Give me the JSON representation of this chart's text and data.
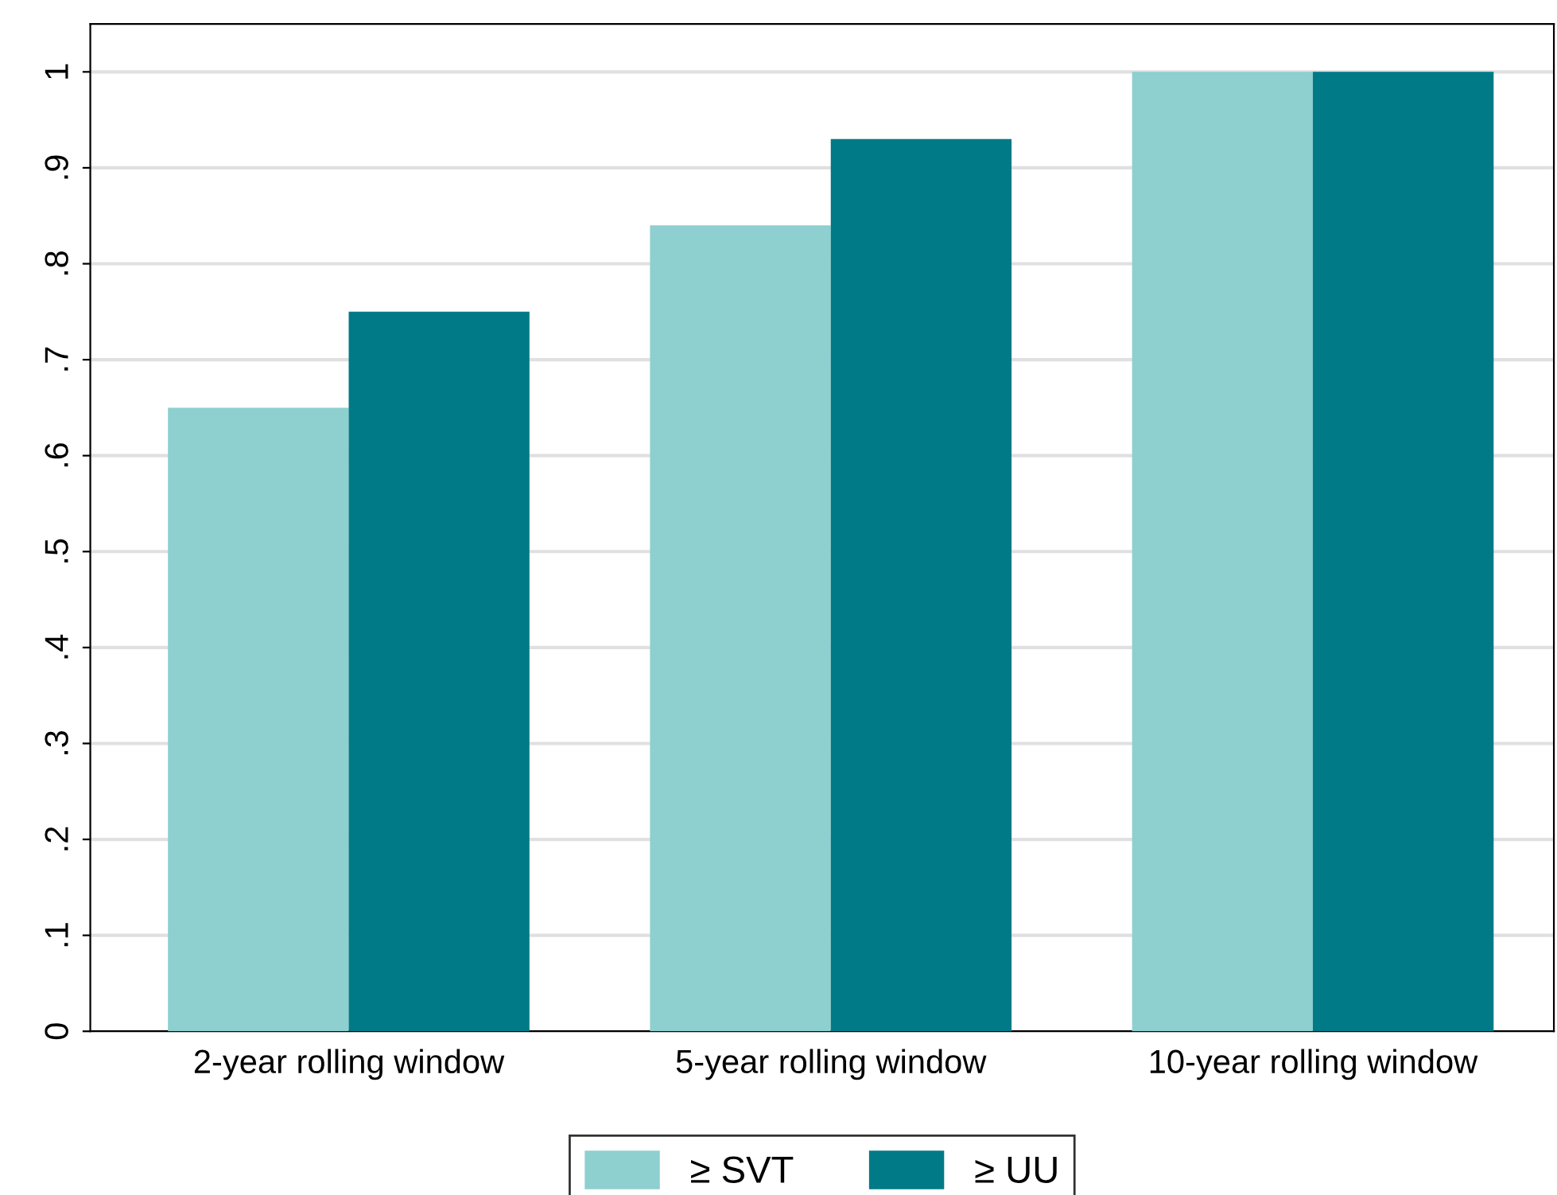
{
  "chart_data": {
    "type": "bar",
    "categories": [
      "2-year rolling window",
      "5-year rolling window",
      "10-year rolling window"
    ],
    "series": [
      {
        "name": "≥ SVT",
        "color": "#8ecfd0",
        "values": [
          0.65,
          0.84,
          1.0
        ]
      },
      {
        "name": "≥ UU",
        "color": "#007a87",
        "values": [
          0.75,
          0.93,
          1.0
        ]
      }
    ],
    "ylim": [
      0,
      1.05
    ],
    "yticks": [
      0,
      {
        "value": 0.1,
        "label": ".1"
      },
      {
        "value": 0.2,
        "label": ".2"
      },
      {
        "value": 0.3,
        "label": ".3"
      },
      {
        "value": 0.4,
        "label": ".4"
      },
      {
        "value": 0.5,
        "label": ".5"
      },
      {
        "value": 0.6,
        "label": ".6"
      },
      {
        "value": 0.7,
        "label": ".7"
      },
      {
        "value": 0.8,
        "label": ".8"
      },
      {
        "value": 0.9,
        "label": ".9"
      },
      1
    ],
    "grid": "y",
    "legend": "bottom"
  }
}
